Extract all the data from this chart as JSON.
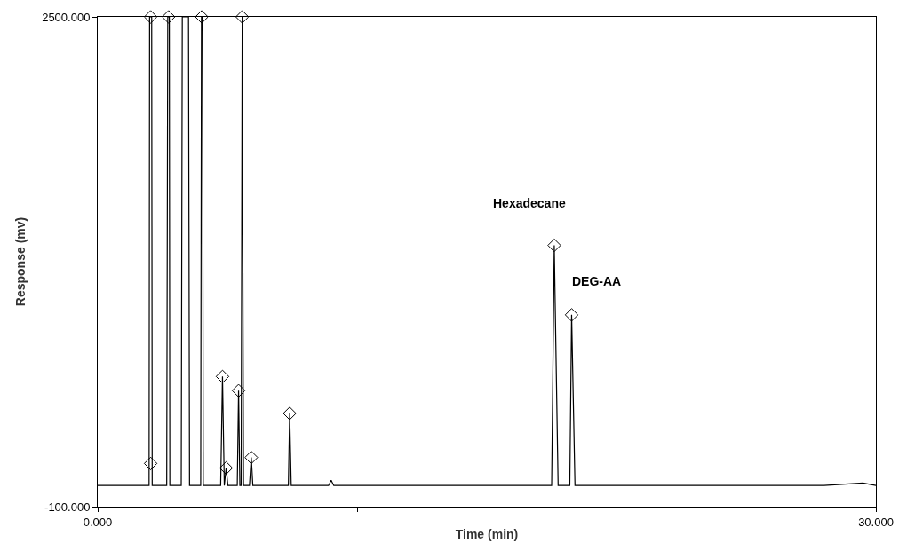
{
  "chart_data": {
    "type": "line",
    "xlabel": "Time (min)",
    "ylabel": "Response (mv)",
    "xlim": [
      0,
      30
    ],
    "ylim": [
      -100,
      2500
    ],
    "xticks": [
      {
        "value": 0,
        "label": "0.000"
      },
      {
        "value": 10,
        "label": null
      },
      {
        "value": 20,
        "label": null
      },
      {
        "value": 30,
        "label": "30.000"
      }
    ],
    "yticks": [
      {
        "value": -100,
        "label": "-100.000"
      },
      {
        "value": 2500,
        "label": "2500.000"
      }
    ],
    "series": [
      {
        "color": "#000000",
        "marker": "none",
        "line_style": "solid",
        "x": [
          0,
          1.98,
          2.0,
          2.08,
          2.1,
          2.66,
          2.7,
          2.76,
          2.78,
          3.22,
          3.26,
          3.5,
          3.54,
          3.97,
          4.0,
          4.04,
          4.07,
          4.74,
          4.81,
          4.88,
          4.95,
          5.02,
          5.2,
          5.38,
          5.43,
          5.48,
          5.53,
          5.57,
          5.62,
          5.85,
          5.92,
          5.98,
          6.5,
          7.35,
          7.4,
          7.46,
          8.5,
          8.9,
          9.0,
          9.1,
          12,
          17.5,
          17.6,
          17.75,
          18.2,
          18.27,
          18.4,
          20,
          25,
          28,
          29.5,
          30
        ],
        "values": [
          12,
          12,
          2500,
          2500,
          12,
          12,
          2500,
          2500,
          12,
          12,
          2500,
          2500,
          12,
          12,
          2500,
          2500,
          12,
          12,
          591,
          12,
          105,
          12,
          12,
          12,
          516,
          12,
          12,
          2500,
          12,
          12,
          161,
          12,
          12,
          12,
          395,
          12,
          12,
          12,
          40,
          12,
          12,
          12,
          1287,
          12,
          12,
          918,
          12,
          12,
          12,
          12,
          25,
          12
        ]
      },
      {
        "type": "scatter",
        "color": "#000000",
        "marker": "diamond",
        "x": [
          2.04,
          2.04,
          2.73,
          4.01,
          5.57,
          4.81,
          4.95,
          5.43,
          5.92,
          7.4,
          17.6,
          18.27
        ],
        "values": [
          129,
          2500,
          2500,
          2500,
          2500,
          591,
          105,
          516,
          161,
          395,
          1287,
          918
        ]
      }
    ],
    "annotations": [
      {
        "text": "Hexadecane",
        "x": 17.6,
        "y": 1287
      },
      {
        "text": "DEG-AA",
        "x": 18.27,
        "y": 918
      }
    ]
  }
}
